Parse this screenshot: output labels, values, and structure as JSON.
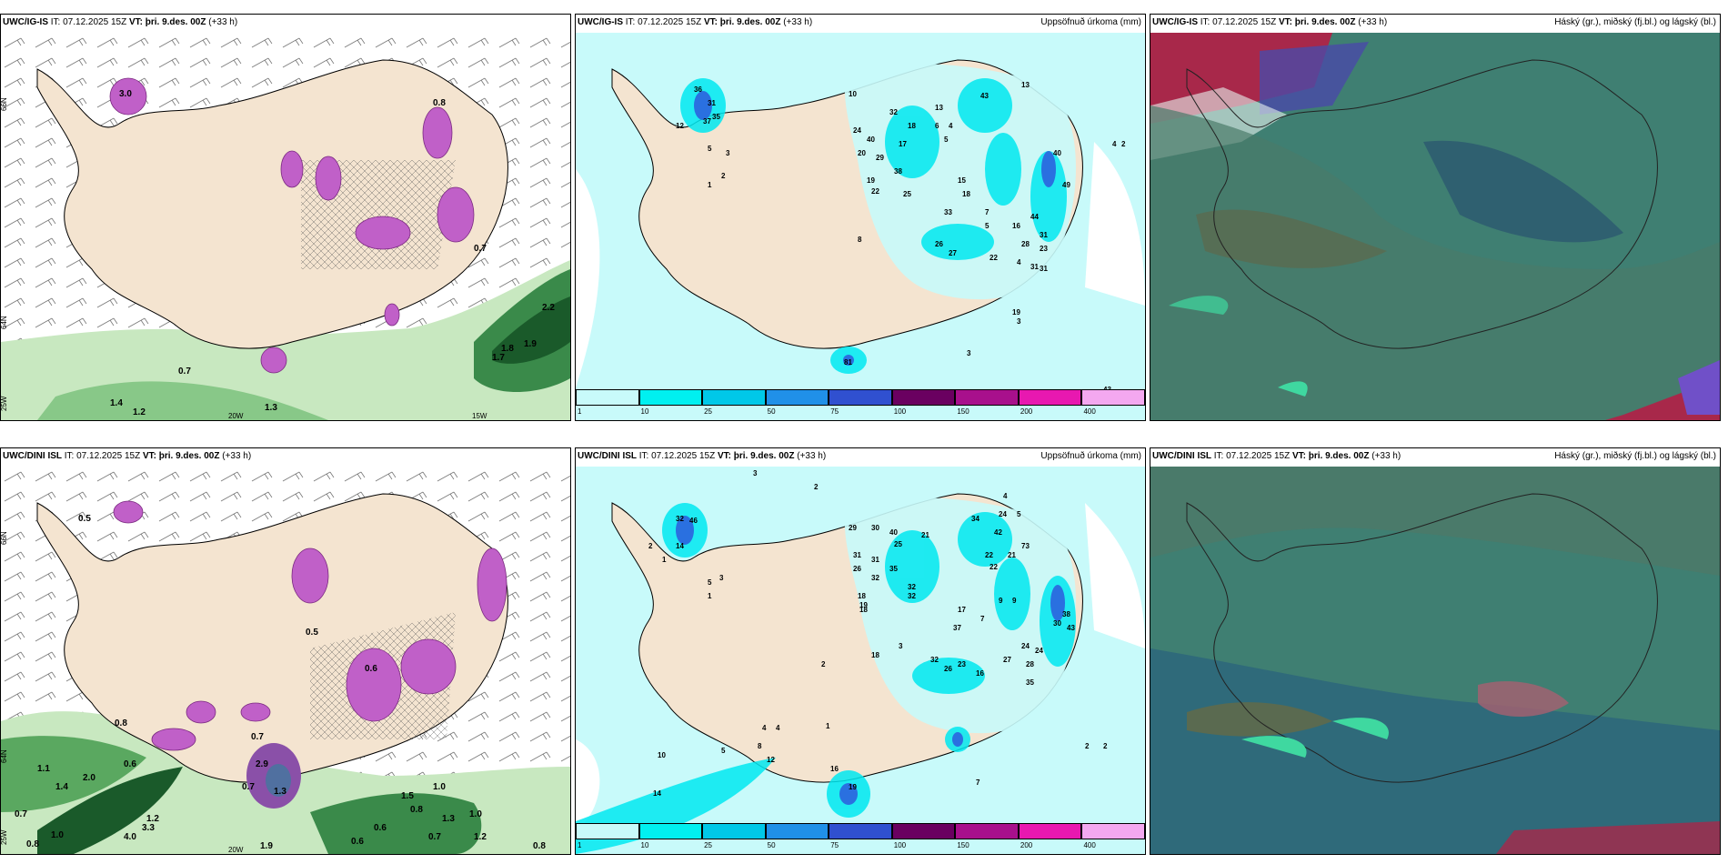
{
  "top_row": {
    "panel1": {
      "model": "UWC/IG-IS",
      "info": "IT: 07.12.2025 15Z",
      "vt_label": "VT:",
      "vt_value": "þri. 9.des. 00Z",
      "lead": "(+33 h)",
      "right": ""
    },
    "panel2": {
      "model": "UWC/IG-IS",
      "info": "IT: 07.12.2025 15Z",
      "vt_label": "VT:",
      "vt_value": "þri. 9.des. 00Z",
      "lead": "(+33 h)",
      "right": "Uppsöfnuð úrkoma (mm)"
    },
    "panel3": {
      "model": "UWC/IG-IS",
      "info": "IT: 07.12.2025 15Z",
      "vt_label": "VT:",
      "vt_value": "þri. 9.des. 00Z",
      "lead": "(+33 h)",
      "right": "Háský (gr.), miðský (fj.bl.) og lágský (bl.)"
    }
  },
  "bottom_row": {
    "panel1": {
      "model": "UWC/DINI ISL",
      "info": "IT: 07.12.2025 15Z",
      "vt_label": "VT:",
      "vt_value": "þri. 9.des. 00Z",
      "lead": "(+33 h)",
      "right": ""
    },
    "panel2": {
      "model": "UWC/DINI ISL",
      "info": "IT: 07.12.2025 15Z",
      "vt_label": "VT:",
      "vt_value": "þri. 9.des. 00Z",
      "lead": "(+33 h)",
      "right": "Uppsöfnuð úrkoma (mm)"
    },
    "panel3": {
      "model": "UWC/DINI ISL",
      "info": "IT: 07.12.2025 15Z",
      "vt_label": "VT:",
      "vt_value": "þri. 9.des. 00Z",
      "lead": "(+33 h)",
      "right": "Háský (gr.), miðský (fj.bl.) og lágský (bl.)"
    }
  },
  "grid_labels": {
    "lat66": "66N",
    "lat64": "64N",
    "lon20": "20W",
    "lon15": "15W",
    "lon25": "25W"
  },
  "precip_legend": {
    "ticks": [
      "1",
      "10",
      "25",
      "50",
      "75",
      "100",
      "150",
      "200",
      "400"
    ],
    "colors": [
      "#c8fafa",
      "#00f0f0",
      "#00c8e8",
      "#2090e8",
      "#3050d0",
      "#6a0060",
      "#a8108c",
      "#e818b0",
      "#f4a8f0"
    ]
  },
  "labels_top_left": [
    "3.0",
    "0.8",
    "0.7",
    "2.2",
    "1.9",
    "1.8",
    "1.7",
    "0.7",
    "1.2",
    "1.4",
    "1.3",
    "0.5"
  ],
  "labels_top_mid": [
    "36",
    "31",
    "35",
    "37",
    "12",
    "5",
    "3",
    "2",
    "1",
    "10",
    "32",
    "18",
    "6",
    "4",
    "13",
    "43",
    "24",
    "40",
    "17",
    "29",
    "20",
    "19",
    "22",
    "38",
    "25",
    "5",
    "15",
    "18",
    "7",
    "33",
    "5",
    "8",
    "26",
    "27",
    "22",
    "16",
    "28",
    "23",
    "44",
    "31",
    "31",
    "31",
    "4",
    "4",
    "2",
    "3",
    "3",
    "43",
    "81",
    "40",
    "49",
    "13",
    "19"
  ],
  "labels_bot_left": [
    "0.5",
    "0.8",
    "0.6",
    "0.6",
    "0.7",
    "0.5",
    "1.2",
    "0.7",
    "1.0",
    "4.0",
    "3.3",
    "0.8",
    "1.5",
    "1.0",
    "0.8",
    "0.6",
    "1.3",
    "1.2",
    "0.6",
    "1.0",
    "0.8",
    "2.9",
    "1.9",
    "1.3",
    "0.7",
    "2.0",
    "1.4",
    "1.1",
    "0.7"
  ],
  "labels_bot_mid": [
    "3",
    "32",
    "46",
    "14",
    "2",
    "1",
    "5",
    "3",
    "1",
    "29",
    "30",
    "40",
    "25",
    "21",
    "31",
    "31",
    "35",
    "26",
    "32",
    "32",
    "32",
    "18",
    "19",
    "18",
    "2",
    "18",
    "34",
    "24",
    "4",
    "5",
    "42",
    "22",
    "22",
    "21",
    "73",
    "9",
    "9",
    "7",
    "3",
    "37",
    "17",
    "32",
    "24",
    "27",
    "28",
    "24",
    "16",
    "35",
    "26",
    "23",
    "30",
    "38",
    "43",
    "2",
    "2",
    "7",
    "10",
    "14",
    "20",
    "28",
    "4",
    "4",
    "1",
    "5",
    "8",
    "12",
    "16",
    "19",
    "2"
  ]
}
